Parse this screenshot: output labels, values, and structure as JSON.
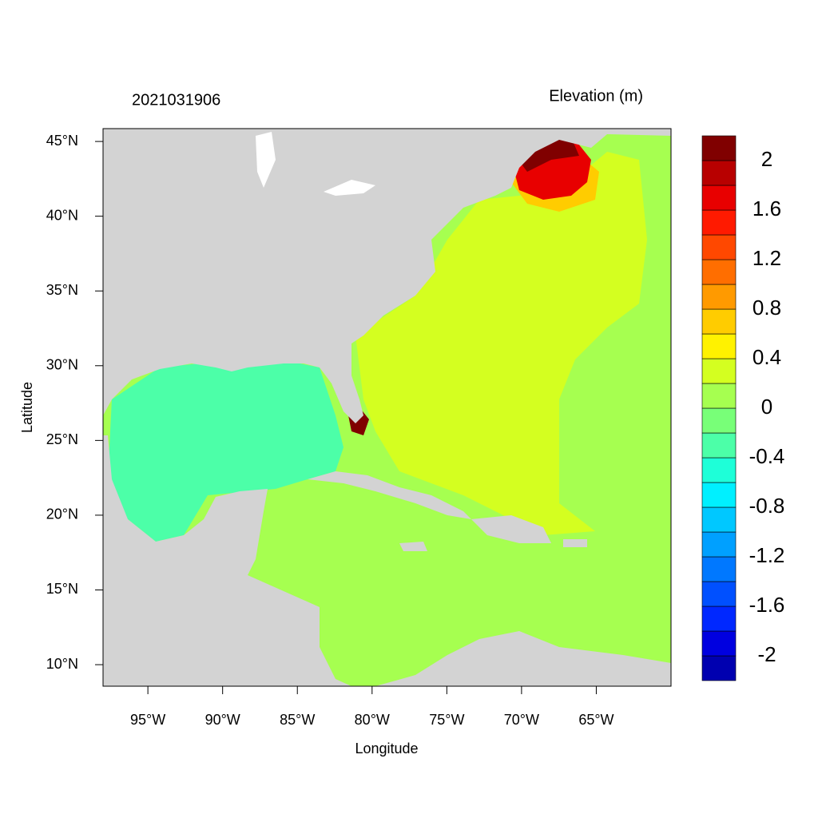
{
  "chart_data": {
    "type": "contour-map",
    "title": "2021031906",
    "subtitle": "Elevation (m)",
    "x_label": "Longitude",
    "y_label": "Latitude",
    "xlim": [
      -98,
      -60
    ],
    "ylim": [
      8.56,
      45.86
    ],
    "xticks": [
      {
        "value": -95,
        "label": "95°W"
      },
      {
        "value": -90,
        "label": "90°W"
      },
      {
        "value": -85,
        "label": "85°W"
      },
      {
        "value": -80,
        "label": "80°W"
      },
      {
        "value": -75,
        "label": "75°W"
      },
      {
        "value": -70,
        "label": "70°W"
      },
      {
        "value": -65,
        "label": "65°W"
      }
    ],
    "yticks": [
      {
        "value": 10,
        "label": "10°N"
      },
      {
        "value": 15,
        "label": "15°N"
      },
      {
        "value": 20,
        "label": "20°N"
      },
      {
        "value": 25,
        "label": "25°N"
      },
      {
        "value": 30,
        "label": "30°N"
      },
      {
        "value": 35,
        "label": "35°N"
      },
      {
        "value": 40,
        "label": "40°N"
      },
      {
        "value": 45,
        "label": "45°N"
      }
    ],
    "colorbar": {
      "levels": [
        -2,
        -1.8,
        -1.6,
        -1.4,
        -1.2,
        -1,
        -0.8,
        -0.6,
        -0.4,
        -0.2,
        0,
        0.2,
        0.4,
        0.6,
        0.8,
        1,
        1.2,
        1.4,
        1.6,
        1.8,
        2
      ],
      "colors": [
        "#0000b0",
        "#0000e0",
        "#0028ff",
        "#0050ff",
        "#0078ff",
        "#00a0ff",
        "#00c8ff",
        "#00f0ff",
        "#1effd8",
        "#4cffa8",
        "#78ff78",
        "#a6ff50",
        "#d4ff20",
        "#fff200",
        "#ffcc00",
        "#ff9a00",
        "#ff6e00",
        "#ff4800",
        "#ff1a00",
        "#e80000",
        "#b80000",
        "#800000"
      ],
      "ticks": [
        -2,
        -1.6,
        -1.2,
        -0.8,
        -0.4,
        0,
        0.4,
        0.8,
        1.2,
        1.6,
        2
      ]
    }
  }
}
